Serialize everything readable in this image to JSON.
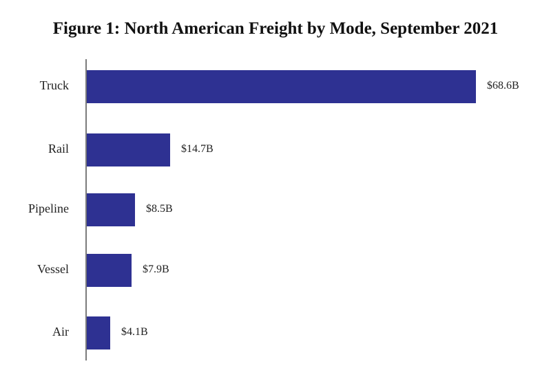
{
  "chart_data": {
    "type": "bar",
    "orientation": "horizontal",
    "title": "Figure 1: North American Freight by Mode, September 2021",
    "categories": [
      "Truck",
      "Rail",
      "Pipeline",
      "Vessel",
      "Air"
    ],
    "values": [
      68.6,
      14.7,
      8.5,
      7.9,
      4.1
    ],
    "value_labels": [
      "$68.6B",
      "$14.7B",
      "$8.5B",
      "$7.9B",
      "$4.1B"
    ],
    "unit": "billion USD",
    "xlabel": "",
    "ylabel": "",
    "grid": false,
    "legend": null,
    "bar_color": "#2e3192"
  }
}
